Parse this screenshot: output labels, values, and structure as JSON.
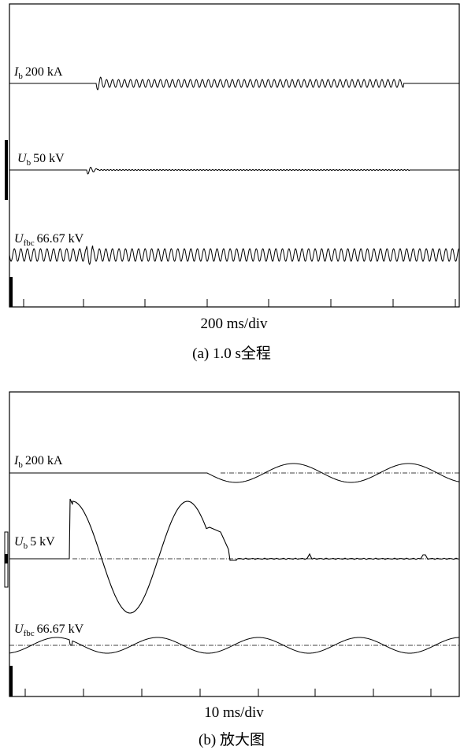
{
  "panel_a": {
    "caption": "(a)  1.0 s全程",
    "timebase": "200 ms/div",
    "traces": [
      {
        "sym": "I",
        "sub": "b",
        "scale": "200 kA"
      },
      {
        "sym": "U",
        "sub": "b",
        "scale": "50 kV"
      },
      {
        "sym": "U",
        "sub": "fbc",
        "scale": "66.67 kV"
      }
    ]
  },
  "panel_b": {
    "caption": "(b)  放大图",
    "timebase": "10 ms/div",
    "traces": [
      {
        "sym": "I",
        "sub": "b",
        "scale": "200 kA"
      },
      {
        "sym": "U",
        "sub": "b",
        "scale": "5 kV"
      },
      {
        "sym": "U",
        "sub": "fbc",
        "scale": "66.67 kV"
      }
    ]
  }
}
